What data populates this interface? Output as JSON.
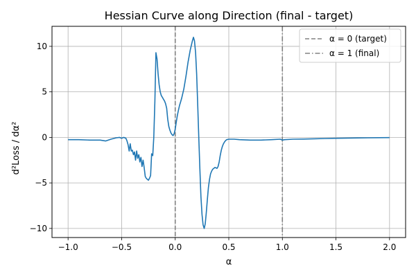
{
  "chart_data": {
    "type": "line",
    "title": "Hessian Curve along Direction (final - target)",
    "xlabel": "α",
    "ylabel": "d²Loss / dα²",
    "xlim": [
      -1.15,
      2.15
    ],
    "ylim": [
      -11.0,
      12.2
    ],
    "xticks": [
      -1.0,
      -0.5,
      0.0,
      0.5,
      1.0,
      1.5,
      2.0
    ],
    "xtick_labels": [
      "−1.0",
      "−0.5",
      "0.0",
      "0.5",
      "1.0",
      "1.5",
      "2.0"
    ],
    "yticks": [
      -10,
      -5,
      0,
      5,
      10
    ],
    "ytick_labels": [
      "−10",
      "−5",
      "0",
      "5",
      "10"
    ],
    "grid": true,
    "legend_position": "top-right",
    "series": [
      {
        "color": "#1f77b4",
        "x": [
          -1.0,
          -0.9,
          -0.8,
          -0.7,
          -0.65,
          -0.6,
          -0.55,
          -0.52,
          -0.5,
          -0.48,
          -0.46,
          -0.45,
          -0.44,
          -0.43,
          -0.42,
          -0.41,
          -0.4,
          -0.39,
          -0.38,
          -0.37,
          -0.36,
          -0.35,
          -0.34,
          -0.33,
          -0.32,
          -0.31,
          -0.3,
          -0.29,
          -0.28,
          -0.27,
          -0.26,
          -0.25,
          -0.24,
          -0.23,
          -0.22,
          -0.21,
          -0.2,
          -0.19,
          -0.18,
          -0.17,
          -0.16,
          -0.15,
          -0.14,
          -0.13,
          -0.12,
          -0.11,
          -0.1,
          -0.09,
          -0.08,
          -0.07,
          -0.06,
          -0.05,
          -0.04,
          -0.03,
          -0.02,
          -0.01,
          0.0,
          0.01,
          0.02,
          0.03,
          0.04,
          0.05,
          0.06,
          0.08,
          0.1,
          0.12,
          0.14,
          0.16,
          0.17,
          0.18,
          0.19,
          0.2,
          0.21,
          0.22,
          0.23,
          0.24,
          0.25,
          0.26,
          0.27,
          0.28,
          0.29,
          0.3,
          0.31,
          0.32,
          0.33,
          0.34,
          0.35,
          0.36,
          0.37,
          0.38,
          0.39,
          0.4,
          0.41,
          0.42,
          0.43,
          0.44,
          0.45,
          0.46,
          0.47,
          0.48,
          0.5,
          0.52,
          0.55,
          0.6,
          0.7,
          0.8,
          0.9,
          0.98,
          1.0,
          1.02,
          1.1,
          1.2,
          1.3,
          1.4,
          1.5,
          1.6,
          1.7,
          1.8,
          1.9,
          2.0
        ],
        "y": [
          -0.25,
          -0.25,
          -0.3,
          -0.3,
          -0.4,
          -0.2,
          -0.05,
          0.0,
          -0.1,
          0.0,
          -0.1,
          -0.4,
          -0.8,
          -1.5,
          -0.7,
          -1.5,
          -1.4,
          -1.9,
          -1.6,
          -2.5,
          -1.5,
          -2.3,
          -1.9,
          -2.7,
          -2.2,
          -3.2,
          -2.5,
          -3.3,
          -4.3,
          -4.5,
          -4.6,
          -4.7,
          -4.5,
          -4.2,
          -1.8,
          -2.0,
          0.0,
          4.0,
          9.3,
          8.6,
          7.0,
          5.8,
          5.0,
          4.6,
          4.4,
          4.2,
          4.0,
          3.7,
          3.2,
          2.0,
          1.2,
          0.8,
          0.5,
          0.3,
          0.2,
          0.4,
          0.9,
          1.7,
          2.4,
          3.0,
          3.5,
          3.9,
          4.3,
          5.3,
          6.7,
          8.3,
          9.6,
          10.6,
          11.0,
          10.6,
          9.3,
          7.0,
          3.5,
          0.0,
          -3.5,
          -6.5,
          -8.5,
          -9.6,
          -10.0,
          -9.5,
          -8.3,
          -6.8,
          -5.5,
          -4.6,
          -4.0,
          -3.7,
          -3.5,
          -3.4,
          -3.3,
          -3.35,
          -3.4,
          -3.2,
          -2.7,
          -2.0,
          -1.4,
          -1.0,
          -0.7,
          -0.5,
          -0.35,
          -0.25,
          -0.2,
          -0.2,
          -0.2,
          -0.25,
          -0.3,
          -0.3,
          -0.25,
          -0.2,
          -0.3,
          -0.25,
          -0.2,
          -0.18,
          -0.15,
          -0.12,
          -0.1,
          -0.08,
          -0.06,
          -0.05,
          -0.03,
          -0.02
        ]
      }
    ],
    "vlines": [
      {
        "x": 0.0,
        "style": "dashed",
        "label": "α = 0 (target)",
        "color": "#808080"
      },
      {
        "x": 1.0,
        "style": "dashdot",
        "label": "α = 1 (final)",
        "color": "#808080"
      }
    ]
  }
}
